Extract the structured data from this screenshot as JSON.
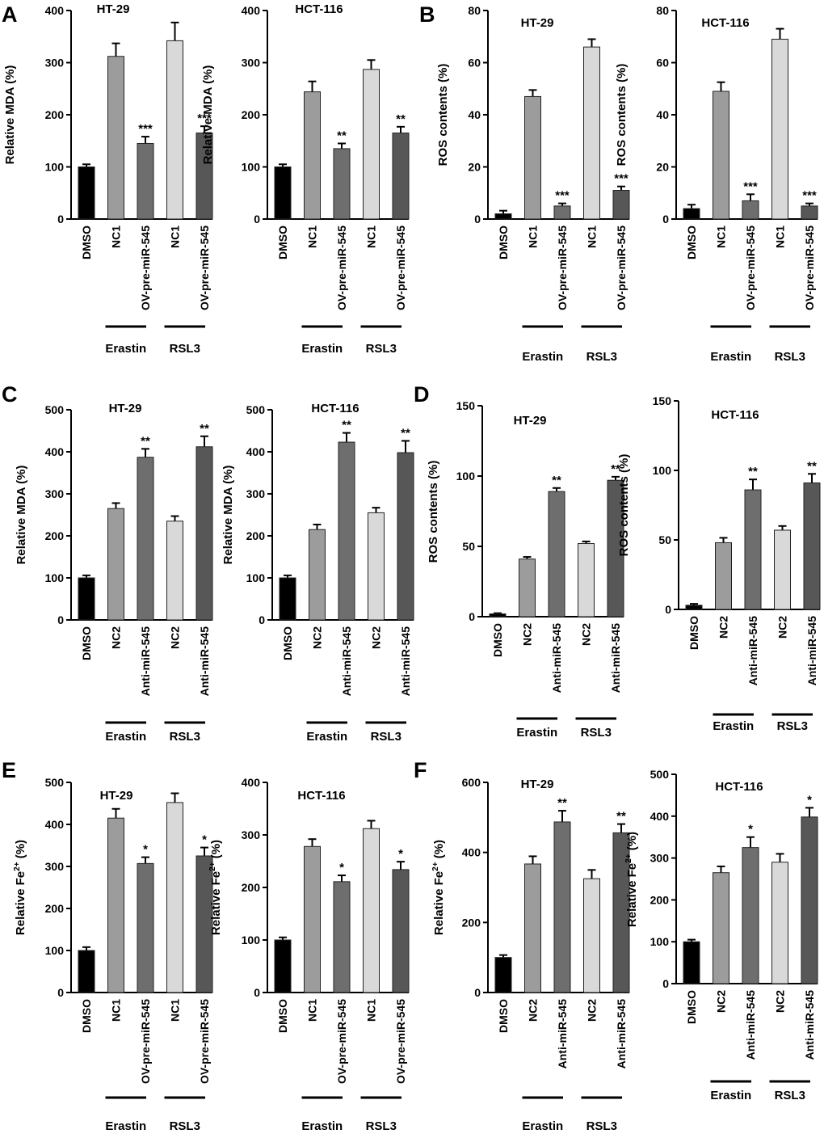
{
  "chart_data": [
    {
      "id": "A1",
      "panel_label": "A",
      "type": "bar",
      "title": "HT-29",
      "ylabel": "Relative MDA (%)",
      "ylim": [
        0,
        400
      ],
      "yticks": [
        0,
        100,
        200,
        300,
        400
      ],
      "categories": [
        "DMSO",
        "NC1",
        "OV-pre-miR-545",
        "NC1",
        "OV-pre-miR-545"
      ],
      "values": [
        100,
        312,
        145,
        342,
        165
      ],
      "errors": [
        5,
        25,
        13,
        35,
        13
      ],
      "significance": [
        "",
        "",
        "***",
        "",
        "***"
      ],
      "groups": [
        {
          "label": "Erastin",
          "from": 1,
          "to": 2
        },
        {
          "label": "RSL3",
          "from": 3,
          "to": 4
        }
      ]
    },
    {
      "id": "A2",
      "panel_label": "",
      "type": "bar",
      "title": "HCT-116",
      "ylabel": "Relative MDA (%)",
      "ylim": [
        0,
        400
      ],
      "yticks": [
        0,
        100,
        200,
        300,
        400
      ],
      "categories": [
        "DMSO",
        "NC1",
        "OV-pre-miR-545",
        "NC1",
        "OV-pre-miR-545"
      ],
      "values": [
        100,
        244,
        135,
        287,
        165
      ],
      "errors": [
        5,
        20,
        10,
        18,
        12
      ],
      "significance": [
        "",
        "",
        "**",
        "",
        "**"
      ],
      "groups": [
        {
          "label": "Erastin",
          "from": 1,
          "to": 2
        },
        {
          "label": "RSL3",
          "from": 3,
          "to": 4
        }
      ]
    },
    {
      "id": "B1",
      "panel_label": "B",
      "type": "bar",
      "title": "HT-29",
      "ylabel": "ROS contents (%)",
      "ylim": [
        0,
        80
      ],
      "yticks": [
        0,
        20,
        40,
        60,
        80
      ],
      "categories": [
        "DMSO",
        "NC1",
        "OV-pre-miR-545",
        "NC1",
        "OV-pre-miR-545"
      ],
      "values": [
        2,
        47,
        5,
        66,
        11
      ],
      "errors": [
        1.2,
        2.5,
        1.0,
        3.0,
        1.5
      ],
      "significance": [
        "",
        "",
        "***",
        "",
        "***"
      ],
      "groups": [
        {
          "label": "Erastin",
          "from": 1,
          "to": 2
        },
        {
          "label": "RSL3",
          "from": 3,
          "to": 4
        }
      ]
    },
    {
      "id": "B2",
      "panel_label": "",
      "type": "bar",
      "title": "HCT-116",
      "ylabel": "ROS contents (%)",
      "ylim": [
        0,
        80
      ],
      "yticks": [
        0,
        20,
        40,
        60,
        80
      ],
      "categories": [
        "DMSO",
        "NC1",
        "OV-pre-miR-545",
        "NC1",
        "OV-pre-miR-545"
      ],
      "values": [
        4,
        49,
        7,
        69,
        5
      ],
      "errors": [
        1.5,
        3.5,
        2.5,
        4.0,
        1.0
      ],
      "significance": [
        "",
        "",
        "***",
        "",
        "***"
      ],
      "groups": [
        {
          "label": "Erastin",
          "from": 1,
          "to": 2
        },
        {
          "label": "RSL3",
          "from": 3,
          "to": 4
        }
      ]
    },
    {
      "id": "C1",
      "panel_label": "C",
      "type": "bar",
      "title": "HT-29",
      "ylabel": "Relative MDA (%)",
      "ylim": [
        0,
        500
      ],
      "yticks": [
        0,
        100,
        200,
        300,
        400,
        500
      ],
      "categories": [
        "DMSO",
        "NC2",
        "Anti-miR-545",
        "NC2",
        "Anti-miR-545"
      ],
      "values": [
        100,
        265,
        387,
        235,
        412
      ],
      "errors": [
        6,
        13,
        20,
        12,
        25
      ],
      "significance": [
        "",
        "",
        "**",
        "",
        "**"
      ],
      "groups": [
        {
          "label": "Erastin",
          "from": 1,
          "to": 2
        },
        {
          "label": "RSL3",
          "from": 3,
          "to": 4
        }
      ]
    },
    {
      "id": "C2",
      "panel_label": "",
      "type": "bar",
      "title": "HCT-116",
      "ylabel": "Relative MDA (%)",
      "ylim": [
        0,
        500
      ],
      "yticks": [
        0,
        100,
        200,
        300,
        400,
        500
      ],
      "categories": [
        "DMSO",
        "NC2",
        "Anti-miR-545",
        "NC2",
        "Anti-miR-545"
      ],
      "values": [
        100,
        215,
        423,
        255,
        398
      ],
      "errors": [
        6,
        12,
        22,
        12,
        28
      ],
      "significance": [
        "",
        "",
        "**",
        "",
        "**"
      ],
      "groups": [
        {
          "label": "Erastin",
          "from": 1,
          "to": 2
        },
        {
          "label": "RSL3",
          "from": 3,
          "to": 4
        }
      ]
    },
    {
      "id": "D1",
      "panel_label": "D",
      "type": "bar",
      "title": "HT-29",
      "ylabel": "ROS contents (%)",
      "ylim": [
        0,
        150
      ],
      "yticks": [
        0,
        50,
        100,
        150
      ],
      "categories": [
        "DMSO",
        "NC2",
        "Anti-miR-545",
        "NC2",
        "Anti-miR-545"
      ],
      "values": [
        2,
        41,
        89,
        52,
        97
      ],
      "errors": [
        0.5,
        1.5,
        2.5,
        1.5,
        2.5
      ],
      "significance": [
        "",
        "",
        "**",
        "",
        "**"
      ],
      "groups": [
        {
          "label": "Erastin",
          "from": 1,
          "to": 2
        },
        {
          "label": "RSL3",
          "from": 3,
          "to": 4
        }
      ]
    },
    {
      "id": "D2",
      "panel_label": "",
      "type": "bar",
      "title": "HCT-116",
      "ylabel": "ROS contents (%)",
      "ylim": [
        0,
        150
      ],
      "yticks": [
        0,
        50,
        100,
        150
      ],
      "categories": [
        "DMSO",
        "NC2",
        "Anti-miR-545",
        "NC2",
        "Anti-miR-545"
      ],
      "values": [
        3,
        48,
        86,
        57,
        91
      ],
      "errors": [
        1.0,
        3.5,
        7.5,
        3.0,
        6.5
      ],
      "significance": [
        "",
        "",
        "**",
        "",
        "**"
      ],
      "groups": [
        {
          "label": "Erastin",
          "from": 1,
          "to": 2
        },
        {
          "label": "RSL3",
          "from": 3,
          "to": 4
        }
      ]
    },
    {
      "id": "E1",
      "panel_label": "E",
      "type": "bar",
      "title": "HT-29",
      "ylabel": "Relative Fe",
      "ylabel_sup": "2+",
      "ylabel_suffix": " (%)",
      "ylim": [
        0,
        500
      ],
      "yticks": [
        0,
        100,
        200,
        300,
        400,
        500
      ],
      "categories": [
        "DMSO",
        "NC1",
        "OV-pre-miR-545",
        "NC1",
        "OV-pre-miR-545"
      ],
      "values": [
        100,
        415,
        307,
        452,
        325
      ],
      "errors": [
        8,
        22,
        15,
        22,
        20
      ],
      "significance": [
        "",
        "",
        "*",
        "",
        "*"
      ],
      "groups": [
        {
          "label": "Erastin",
          "from": 1,
          "to": 2
        },
        {
          "label": "RSL3",
          "from": 3,
          "to": 4
        }
      ]
    },
    {
      "id": "E2",
      "panel_label": "",
      "type": "bar",
      "title": "HCT-116",
      "ylabel": "Relative Fe",
      "ylabel_sup": "2+",
      "ylabel_suffix": " (%)",
      "ylim": [
        0,
        400
      ],
      "yticks": [
        0,
        100,
        200,
        300,
        400
      ],
      "categories": [
        "DMSO",
        "NC1",
        "OV-pre-miR-545",
        "NC1",
        "OV-pre-miR-545"
      ],
      "values": [
        100,
        278,
        211,
        312,
        234
      ],
      "errors": [
        5,
        14,
        12,
        15,
        15
      ],
      "significance": [
        "",
        "",
        "*",
        "",
        "*"
      ],
      "groups": [
        {
          "label": "Erastin",
          "from": 1,
          "to": 2
        },
        {
          "label": "RSL3",
          "from": 3,
          "to": 4
        }
      ]
    },
    {
      "id": "F1",
      "panel_label": "F",
      "type": "bar",
      "title": "HT-29",
      "ylabel": "Relative Fe",
      "ylabel_sup": "2+",
      "ylabel_suffix": " (%)",
      "ylim": [
        0,
        600
      ],
      "yticks": [
        0,
        200,
        400,
        600
      ],
      "categories": [
        "DMSO",
        "NC2",
        "Anti-miR-545",
        "NC2",
        "Anti-miR-545"
      ],
      "values": [
        100,
        367,
        487,
        325,
        456
      ],
      "errors": [
        7,
        22,
        32,
        25,
        25
      ],
      "significance": [
        "",
        "",
        "**",
        "",
        "**"
      ],
      "groups": [
        {
          "label": "Erastin",
          "from": 1,
          "to": 2
        },
        {
          "label": "RSL3",
          "from": 3,
          "to": 4
        }
      ]
    },
    {
      "id": "F2",
      "panel_label": "",
      "type": "bar",
      "title": "HCT-116",
      "ylabel": "Relative Fe",
      "ylabel_sup": "2+",
      "ylabel_suffix": " (%)",
      "ylim": [
        0,
        500
      ],
      "yticks": [
        0,
        100,
        200,
        300,
        400,
        500
      ],
      "categories": [
        "DMSO",
        "NC2",
        "Anti-miR-545",
        "NC2",
        "Anti-miR-545"
      ],
      "values": [
        100,
        265,
        325,
        290,
        398
      ],
      "errors": [
        5,
        15,
        25,
        20,
        22
      ],
      "significance": [
        "",
        "",
        "*",
        "",
        "*"
      ],
      "groups": [
        {
          "label": "Erastin",
          "from": 1,
          "to": 2
        },
        {
          "label": "RSL3",
          "from": 3,
          "to": 4
        }
      ]
    }
  ],
  "bar_colors": [
    "#000000",
    "#9c9c9c",
    "#6e6e6e",
    "#d9d9d9",
    "#575757"
  ],
  "bar_outline": "#222222"
}
